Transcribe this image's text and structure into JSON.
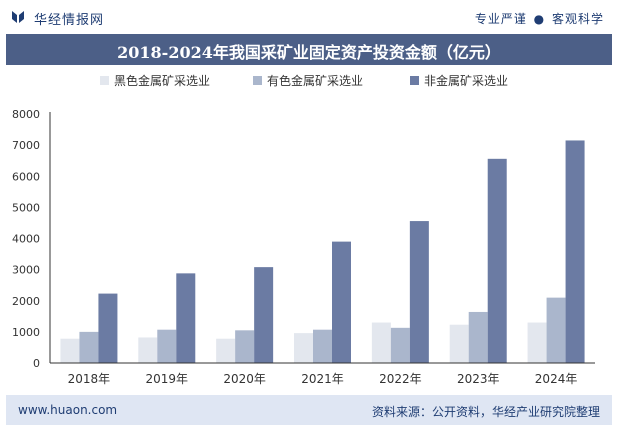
{
  "header": {
    "brand": "华经情报网",
    "tag_left": "专业严谨",
    "tag_sep": "●",
    "tag_right": "客观科学",
    "title": "2018-2024年我国采矿业固定资产投资金额（亿元）"
  },
  "footer": {
    "website": "www.huaon.com",
    "source": "资料来源：公开资料，华经产业研究院整理"
  },
  "colors": {
    "title_bg": "#4c5f87",
    "footer_bg": "#dfe6f3",
    "brand_text": "#1f3d73"
  },
  "chart_data": {
    "type": "bar",
    "title": "2018-2024年我国采矿业固定资产投资金额（亿元）",
    "xlabel": "",
    "ylabel": "",
    "categories": [
      "2018年",
      "2019年",
      "2020年",
      "2021年",
      "2022年",
      "2023年",
      "2024年"
    ],
    "series": [
      {
        "name": "黑色金属矿采选业",
        "color": "#e3e7ee",
        "values": [
          780,
          820,
          780,
          960,
          1300,
          1230,
          1300
        ]
      },
      {
        "name": "有色金属矿采选业",
        "color": "#aab6cc",
        "values": [
          1000,
          1070,
          1050,
          1070,
          1130,
          1640,
          2100
        ]
      },
      {
        "name": "非金属矿采选业",
        "color": "#6b7ba3",
        "values": [
          2230,
          2880,
          3080,
          3900,
          4560,
          6560,
          7150
        ]
      }
    ],
    "ylim": [
      0,
      8000
    ],
    "yticks": [
      "0",
      "1000",
      "2000",
      "3000",
      "4000",
      "5000",
      "6000",
      "7000",
      "8000"
    ],
    "grid": false,
    "legend_position": "top"
  }
}
